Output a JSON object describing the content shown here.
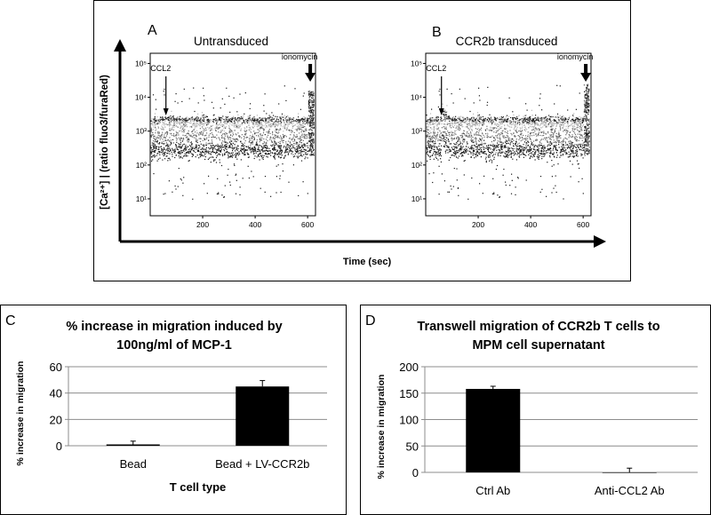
{
  "chart_data": [
    {
      "type": "scatter",
      "panel": "A",
      "title": "Untransduced",
      "xlabel": "Time (sec)",
      "ylabel": "[Ca²⁺] | (ratio fluo3/furaRed)",
      "x_ticks": [
        "200",
        "400",
        "600"
      ],
      "x_tick_values": [
        200,
        400,
        600
      ],
      "y_ticks": [
        "10¹",
        "10²",
        "10³",
        "10⁴",
        "10⁵"
      ],
      "y_tick_values": [
        1,
        2,
        3,
        4,
        5
      ],
      "xlim": [
        0,
        630
      ],
      "ylim_log10": [
        0.5,
        5.3
      ],
      "y_scale": "log",
      "annotations": [
        {
          "label": "CCL2",
          "x": 60
        },
        {
          "label": "ionomycin",
          "x": 610
        }
      ]
    },
    {
      "type": "scatter",
      "panel": "B",
      "title": "CCR2b transduced",
      "xlabel": "Time (sec)",
      "ylabel": "[Ca²⁺] | (ratio fluo3/furaRed)",
      "x_ticks": [
        "200",
        "400",
        "600"
      ],
      "x_tick_values": [
        200,
        400,
        600
      ],
      "y_ticks": [
        "10¹",
        "10²",
        "10³",
        "10⁴",
        "10⁵"
      ],
      "y_tick_values": [
        1,
        2,
        3,
        4,
        5
      ],
      "xlim": [
        0,
        630
      ],
      "ylim_log10": [
        0.5,
        5.3
      ],
      "y_scale": "log",
      "annotations": [
        {
          "label": "CCL2",
          "x": 60
        },
        {
          "label": "ionomycin",
          "x": 610
        }
      ]
    },
    {
      "type": "bar",
      "panel": "C",
      "title_lines": [
        "% increase in migration induced by",
        "100ng/ml of MCP-1"
      ],
      "categories": [
        "Bead",
        "Bead + LV-CCR2b"
      ],
      "values": [
        1,
        45
      ],
      "errors": [
        2.5,
        4.5
      ],
      "ylabel": "% increase in migration",
      "xlabel": "T cell type",
      "ylim": [
        0,
        60
      ],
      "y_ticks": [
        0,
        20,
        40,
        60
      ],
      "grid": true
    },
    {
      "type": "bar",
      "panel": "D",
      "title_lines": [
        "Transwell migration of CCR2b T cells to",
        "MPM cell supernatant"
      ],
      "categories": [
        "Ctrl Ab",
        "Anti-CCL2 Ab"
      ],
      "values": [
        158,
        0
      ],
      "errors": [
        5,
        8
      ],
      "ylabel": "% increase in migration",
      "xlabel": "",
      "ylim": [
        0,
        200
      ],
      "y_ticks": [
        0,
        50,
        100,
        150,
        200
      ],
      "grid": true
    }
  ],
  "colors": {
    "bar": "#000000",
    "grid": "#8c8c8c",
    "dots_dark": "#1a1a1a",
    "dots_mid": "#6e6e6e",
    "dots_light": "#b8b8b8",
    "frame": "#000000"
  }
}
